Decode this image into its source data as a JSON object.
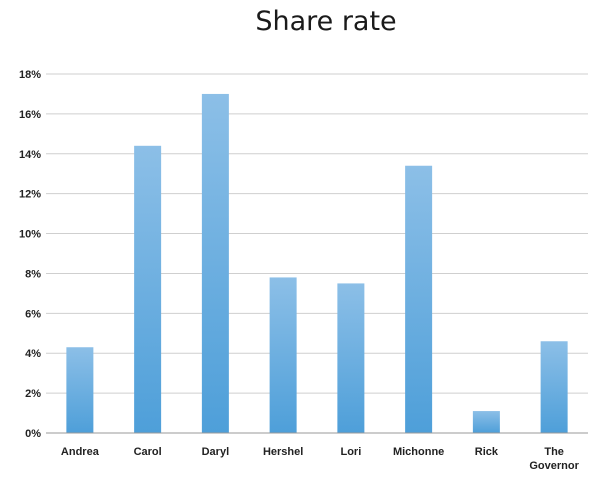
{
  "chart_data": {
    "type": "bar",
    "title": "Share rate",
    "xlabel": "",
    "ylabel": "",
    "categories": [
      "Andrea",
      "Carol",
      "Daryl",
      "Hershel",
      "Lori",
      "Michonne",
      "Rick",
      "The Governor"
    ],
    "values": [
      4.3,
      14.4,
      17.0,
      7.8,
      7.5,
      13.4,
      1.1,
      4.6
    ],
    "value_unit": "%",
    "ylim": [
      0,
      18
    ],
    "yticks": [
      "0%",
      "2%",
      "4%",
      "6%",
      "8%",
      "10%",
      "12%",
      "14%",
      "16%",
      "18%"
    ],
    "grid": true,
    "legend": "none",
    "colors": {
      "bar_top": "#8cbfe7",
      "bar_bottom": "#4e9fd9",
      "grid": "#cfcfcf",
      "axis": "#999999"
    }
  }
}
